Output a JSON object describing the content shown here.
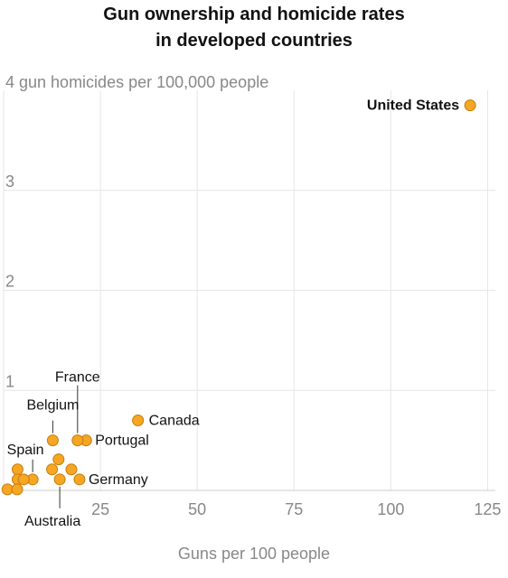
{
  "chart_data": {
    "type": "scatter",
    "title_lines": [
      "Gun ownership and homicide rates",
      "in developed countries"
    ],
    "ylabel": "gun homicides per 100,000 people",
    "xlabel": "Guns per 100 people",
    "xlim": [
      0,
      127
    ],
    "ylim": [
      0,
      4
    ],
    "x_ticks": [
      25,
      50,
      75,
      100,
      125
    ],
    "y_ticks": [
      1,
      2,
      3,
      4
    ],
    "y_top_tick_label": "4 gun homicides per 100,000 people",
    "grid": true,
    "point_color": "#f5a623",
    "point_edge_color": "#c77d0a",
    "points": [
      {
        "label": "United States",
        "x": 120.5,
        "y": 3.85,
        "bold": true
      },
      {
        "label": "Canada",
        "x": 34.7,
        "y": 0.7
      },
      {
        "label": "Portugal",
        "x": 21.3,
        "y": 0.5
      },
      {
        "label": "France",
        "x": 19.1,
        "y": 0.5
      },
      {
        "label": "Belgium",
        "x": 12.7,
        "y": 0.5
      },
      {
        "label": "Germany",
        "x": 19.6,
        "y": 0.11
      },
      {
        "label": "Australia",
        "x": 14.5,
        "y": 0.11
      },
      {
        "label": "Spain",
        "x": 7.5,
        "y": 0.11
      },
      {
        "label": "",
        "x": 14.2,
        "y": 0.31
      },
      {
        "label": "",
        "x": 12.5,
        "y": 0.21
      },
      {
        "label": "",
        "x": 17.5,
        "y": 0.21
      },
      {
        "label": "",
        "x": 3.6,
        "y": 0.21
      },
      {
        "label": "",
        "x": 3.6,
        "y": 0.11
      },
      {
        "label": "",
        "x": 5.2,
        "y": 0.11
      },
      {
        "label": "",
        "x": 1.0,
        "y": 0.01
      },
      {
        "label": "",
        "x": 3.5,
        "y": 0.01
      }
    ]
  }
}
